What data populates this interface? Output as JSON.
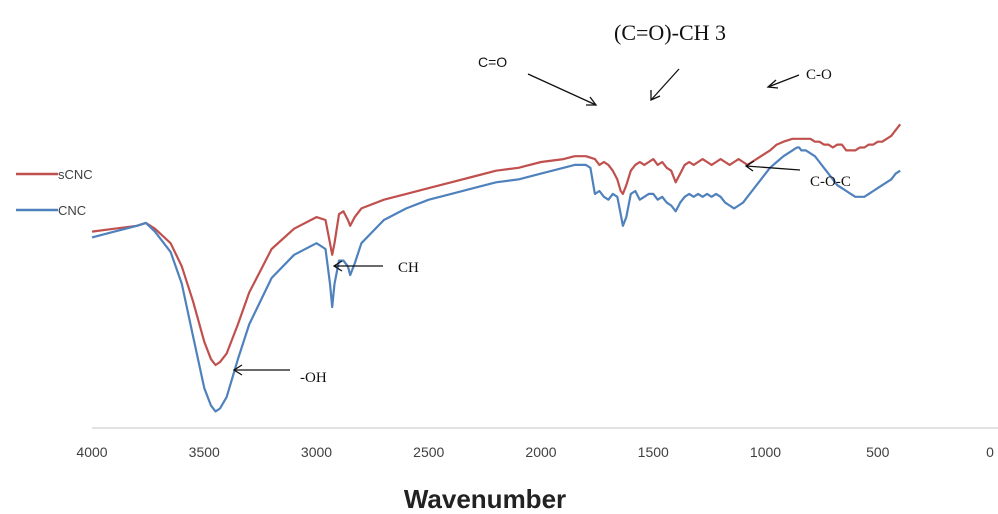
{
  "chart_data": {
    "type": "line",
    "title": "",
    "xlabel": "Wavenumber",
    "ylabel": "",
    "xlim": [
      4000,
      0
    ],
    "x_reversed": true,
    "x_ticks": [
      4000,
      3500,
      3000,
      2500,
      2000,
      1500,
      1000,
      500,
      0
    ],
    "grid": false,
    "legend_position": "left",
    "series": [
      {
        "name": "sCNC",
        "color": "#c0504d",
        "x": [
          4000,
          3900,
          3800,
          3760,
          3720,
          3650,
          3600,
          3550,
          3500,
          3470,
          3450,
          3430,
          3400,
          3350,
          3300,
          3200,
          3100,
          3000,
          2960,
          2940,
          2930,
          2920,
          2900,
          2880,
          2860,
          2850,
          2830,
          2800,
          2700,
          2600,
          2500,
          2400,
          2300,
          2200,
          2100,
          2000,
          1900,
          1850,
          1800,
          1760,
          1740,
          1720,
          1700,
          1680,
          1660,
          1645,
          1635,
          1620,
          1600,
          1580,
          1560,
          1540,
          1520,
          1500,
          1480,
          1460,
          1440,
          1420,
          1400,
          1380,
          1360,
          1340,
          1320,
          1300,
          1280,
          1260,
          1240,
          1220,
          1200,
          1180,
          1160,
          1140,
          1120,
          1100,
          1080,
          1060,
          1040,
          1020,
          1000,
          980,
          950,
          920,
          880,
          850,
          820,
          800,
          780,
          760,
          740,
          720,
          700,
          680,
          660,
          640,
          620,
          600,
          580,
          560,
          540,
          520,
          500,
          480,
          460,
          440,
          420,
          400
        ],
        "y": [
          56,
          57,
          58,
          59,
          57,
          52,
          44,
          32,
          18,
          12,
          10,
          11,
          14,
          24,
          35,
          50,
          57,
          61,
          60,
          52,
          48,
          52,
          62,
          63,
          60,
          58,
          61,
          64,
          67,
          69,
          71,
          73,
          75,
          77,
          78,
          80,
          81,
          82,
          82,
          81,
          79,
          80,
          79,
          77,
          74,
          70,
          69,
          72,
          77,
          79,
          80,
          79,
          80,
          81,
          79,
          80,
          78,
          77,
          73,
          76,
          79,
          80,
          79,
          80,
          81,
          80,
          79,
          80,
          81,
          80,
          79,
          80,
          81,
          80,
          79,
          80,
          81,
          82,
          83,
          84,
          86,
          87,
          88,
          88,
          88,
          88,
          87,
          87,
          86,
          86,
          85,
          86,
          86,
          84,
          84,
          84,
          85,
          85,
          86,
          86,
          87,
          87,
          88,
          89,
          91,
          93
        ]
      },
      {
        "name": "CNC",
        "color": "#4f81bd",
        "x": [
          4000,
          3900,
          3800,
          3760,
          3720,
          3650,
          3600,
          3550,
          3500,
          3470,
          3450,
          3430,
          3400,
          3350,
          3300,
          3200,
          3100,
          3000,
          2960,
          2940,
          2930,
          2920,
          2900,
          2880,
          2860,
          2850,
          2830,
          2800,
          2700,
          2600,
          2500,
          2400,
          2300,
          2200,
          2100,
          2000,
          1900,
          1850,
          1800,
          1780,
          1760,
          1740,
          1720,
          1700,
          1680,
          1660,
          1645,
          1635,
          1620,
          1600,
          1580,
          1560,
          1540,
          1520,
          1500,
          1480,
          1460,
          1440,
          1420,
          1400,
          1380,
          1360,
          1340,
          1320,
          1300,
          1280,
          1260,
          1240,
          1220,
          1200,
          1180,
          1160,
          1140,
          1120,
          1100,
          1080,
          1060,
          1040,
          1020,
          1000,
          980,
          950,
          920,
          900,
          880,
          860,
          850,
          840,
          820,
          800,
          780,
          760,
          740,
          720,
          700,
          680,
          660,
          640,
          620,
          600,
          580,
          560,
          540,
          520,
          500,
          480,
          460,
          440,
          420,
          400
        ],
        "y": [
          54,
          56,
          58,
          59,
          56,
          49,
          38,
          20,
          2,
          -4,
          -6,
          -5,
          -1,
          12,
          24,
          40,
          48,
          52,
          50,
          38,
          30,
          38,
          46,
          46,
          44,
          41,
          45,
          52,
          60,
          64,
          67,
          69,
          71,
          73,
          74,
          76,
          78,
          79,
          79,
          78,
          69,
          70,
          68,
          67,
          69,
          68,
          62,
          58,
          61,
          69,
          70,
          67,
          68,
          69,
          69,
          67,
          68,
          66,
          65,
          63,
          66,
          68,
          69,
          68,
          69,
          68,
          69,
          68,
          69,
          68,
          66,
          65,
          64,
          65,
          66,
          68,
          70,
          72,
          74,
          76,
          78,
          80,
          82,
          83,
          84,
          85,
          85,
          84,
          84,
          83,
          82,
          80,
          78,
          76,
          74,
          72,
          71,
          70,
          69,
          68,
          68,
          68,
          69,
          70,
          71,
          72,
          73,
          74,
          76,
          77
        ]
      }
    ],
    "annotations": [
      {
        "text": "-OH",
        "style": "serif"
      },
      {
        "text": "CH",
        "style": "serif"
      },
      {
        "text": "C=O",
        "style": "sans"
      },
      {
        "text": "(C=O)-CH 3",
        "style": "big"
      },
      {
        "text": "C-O",
        "style": "sans"
      },
      {
        "text": "C-O-C",
        "style": "serif"
      }
    ]
  }
}
